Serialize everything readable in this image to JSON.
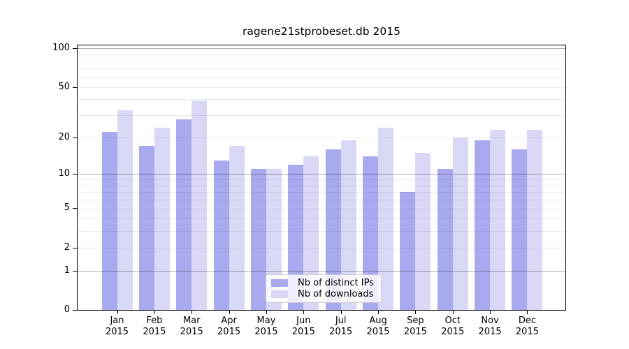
{
  "chart_data": {
    "type": "bar",
    "title": "ragene21stprobeset.db 2015",
    "categories": [
      "Jan 2015",
      "Feb 2015",
      "Mar 2015",
      "Apr 2015",
      "May 2015",
      "Jun 2015",
      "Jul 2015",
      "Aug 2015",
      "Sep 2015",
      "Oct 2015",
      "Nov 2015",
      "Dec 2015"
    ],
    "series": [
      {
        "name": "Nb of distinct IPs",
        "color": "#a9a9f0",
        "values": [
          22,
          17,
          28,
          13,
          11,
          12,
          16,
          14,
          7,
          11,
          19,
          16
        ]
      },
      {
        "name": "Nb of downloads",
        "color": "#d9d9f7",
        "values": [
          33,
          24,
          39,
          17,
          11,
          14,
          19,
          24,
          15,
          20,
          23,
          23
        ]
      }
    ],
    "xlabel": "",
    "ylabel": "",
    "yscale": "log1p",
    "ylim": [
      0,
      110
    ],
    "yticks": [
      100,
      50,
      20,
      10,
      5,
      2,
      1,
      0
    ],
    "gridlines": {
      "major": [
        1,
        10,
        100
      ],
      "minor": [
        2,
        3,
        4,
        5,
        6,
        7,
        8,
        9,
        20,
        30,
        40,
        50,
        60,
        70,
        80,
        90
      ]
    },
    "grid": true,
    "legend_position": "lower center",
    "background_color": "#ffffff",
    "spine_color": "#000000"
  }
}
